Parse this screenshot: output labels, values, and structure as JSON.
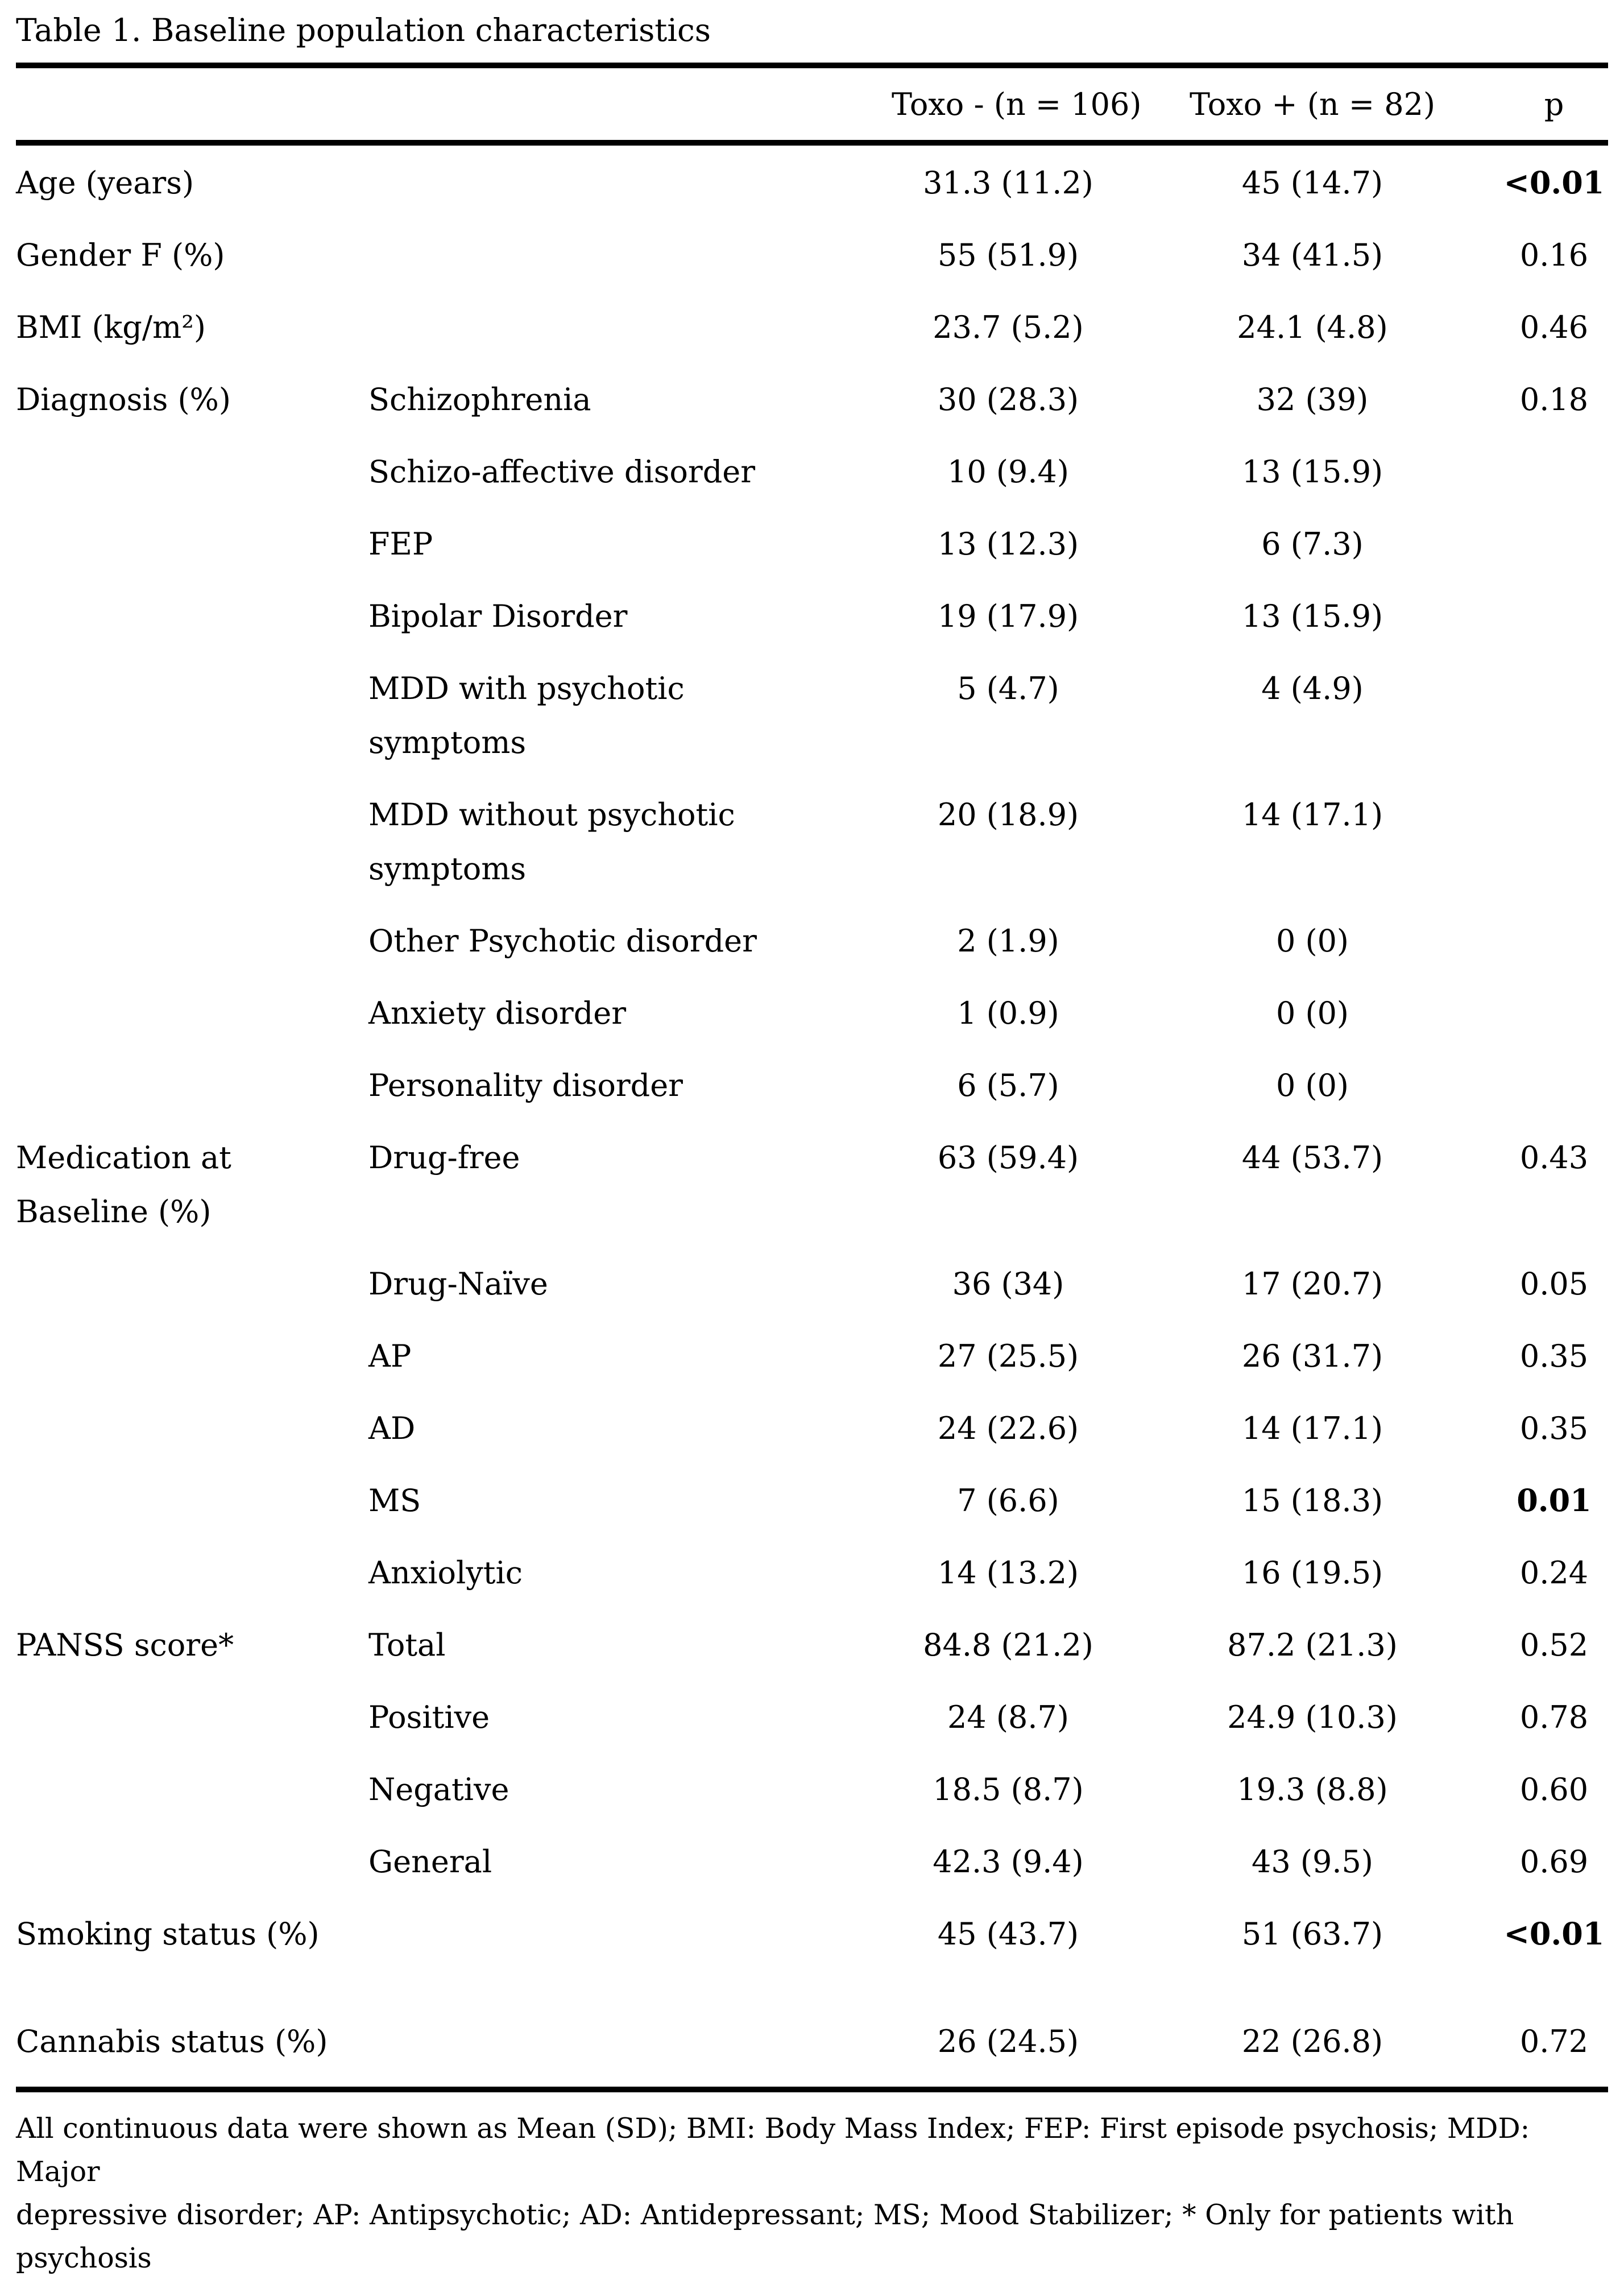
{
  "title": "Table 1. Baseline population characteristics",
  "table": {
    "header": {
      "toxo_neg": "Toxo - (n = 106)",
      "toxo_pos": "Toxo + (n = 82)",
      "p": "p"
    },
    "rows": [
      {
        "group": "Age (years)",
        "item": "",
        "toxo_neg": "31.3 (11.2)",
        "toxo_pos": "45 (14.7)",
        "p": "<0.01",
        "p_bold": true,
        "gap_after": false
      },
      {
        "group": "Gender F (%)",
        "item": "",
        "toxo_neg": "55 (51.9)",
        "toxo_pos": "34 (41.5)",
        "p": "0.16",
        "p_bold": false,
        "gap_after": false
      },
      {
        "group": "BMI (kg/m²)",
        "item": "",
        "toxo_neg": "23.7 (5.2)",
        "toxo_pos": "24.1 (4.8)",
        "p": "0.46",
        "p_bold": false,
        "gap_after": false
      },
      {
        "group": "Diagnosis (%)",
        "item": "Schizophrenia",
        "toxo_neg": "30 (28.3)",
        "toxo_pos": "32 (39)",
        "p": "0.18",
        "p_bold": false,
        "gap_after": false
      },
      {
        "group": "",
        "item": "Schizo-affective disorder",
        "toxo_neg": "10 (9.4)",
        "toxo_pos": "13 (15.9)",
        "p": "",
        "p_bold": false,
        "gap_after": false
      },
      {
        "group": "",
        "item": "FEP",
        "toxo_neg": "13 (12.3)",
        "toxo_pos": "6 (7.3)",
        "p": "",
        "p_bold": false,
        "gap_after": false
      },
      {
        "group": "",
        "item": "Bipolar Disorder",
        "toxo_neg": "19 (17.9)",
        "toxo_pos": "13 (15.9)",
        "p": "",
        "p_bold": false,
        "gap_after": false
      },
      {
        "group": "",
        "item": "MDD with psychotic symptoms",
        "toxo_neg": "5 (4.7)",
        "toxo_pos": "4 (4.9)",
        "p": "",
        "p_bold": false,
        "gap_after": false
      },
      {
        "group": "",
        "item": "MDD without psychotic symptoms",
        "toxo_neg": "20 (18.9)",
        "toxo_pos": "14 (17.1)",
        "p": "",
        "p_bold": false,
        "gap_after": false
      },
      {
        "group": "",
        "item": "Other Psychotic disorder",
        "toxo_neg": "2 (1.9)",
        "toxo_pos": "0 (0)",
        "p": "",
        "p_bold": false,
        "gap_after": false
      },
      {
        "group": "",
        "item": "Anxiety disorder",
        "toxo_neg": "1 (0.9)",
        "toxo_pos": "0 (0)",
        "p": "",
        "p_bold": false,
        "gap_after": false
      },
      {
        "group": "",
        "item": "Personality disorder",
        "toxo_neg": "6 (5.7)",
        "toxo_pos": "0 (0)",
        "p": "",
        "p_bold": false,
        "gap_after": false
      },
      {
        "group": "Medication at Baseline (%)",
        "item": "Drug-free",
        "toxo_neg": "63 (59.4)",
        "toxo_pos": "44 (53.7)",
        "p": "0.43",
        "p_bold": false,
        "gap_after": false
      },
      {
        "group": "",
        "item": "Drug-Naïve",
        "toxo_neg": "36 (34)",
        "toxo_pos": "17 (20.7)",
        "p": "0.05",
        "p_bold": false,
        "gap_after": false
      },
      {
        "group": "",
        "item": "AP",
        "toxo_neg": "27 (25.5)",
        "toxo_pos": "26 (31.7)",
        "p": "0.35",
        "p_bold": false,
        "gap_after": false
      },
      {
        "group": "",
        "item": "AD",
        "toxo_neg": "24 (22.6)",
        "toxo_pos": "14 (17.1)",
        "p": "0.35",
        "p_bold": false,
        "gap_after": false
      },
      {
        "group": "",
        "item": "MS",
        "toxo_neg": "7 (6.6)",
        "toxo_pos": "15 (18.3)",
        "p": "0.01",
        "p_bold": true,
        "gap_after": false
      },
      {
        "group": "",
        "item": "Anxiolytic",
        "toxo_neg": "14 (13.2)",
        "toxo_pos": "16 (19.5)",
        "p": "0.24",
        "p_bold": false,
        "gap_after": false
      },
      {
        "group": "PANSS score*",
        "item": "Total",
        "toxo_neg": "84.8 (21.2)",
        "toxo_pos": "87.2 (21.3)",
        "p": "0.52",
        "p_bold": false,
        "gap_after": false
      },
      {
        "group": "",
        "item": "Positive",
        "toxo_neg": "24 (8.7)",
        "toxo_pos": "24.9 (10.3)",
        "p": "0.78",
        "p_bold": false,
        "gap_after": false
      },
      {
        "group": "",
        "item": "Negative",
        "toxo_neg": "18.5 (8.7)",
        "toxo_pos": "19.3 (8.8)",
        "p": "0.60",
        "p_bold": false,
        "gap_after": false
      },
      {
        "group": "",
        "item": "General",
        "toxo_neg": "42.3 (9.4)",
        "toxo_pos": "43 (9.5)",
        "p": "0.69",
        "p_bold": false,
        "gap_after": false
      },
      {
        "group": "Smoking status (%)",
        "item": "",
        "toxo_neg": "45 (43.7)",
        "toxo_pos": "51 (63.7)",
        "p": "<0.01",
        "p_bold": true,
        "gap_after": true
      },
      {
        "group": "Cannabis status (%)",
        "item": "",
        "toxo_neg": "26 (24.5)",
        "toxo_pos": "22 (26.8)",
        "p": "0.72",
        "p_bold": false,
        "gap_after": false
      }
    ]
  },
  "footnote_lines": [
    "All continuous data were shown as Mean (SD); BMI: Body Mass Index; FEP: First episode psychosis; MDD: Major",
    "depressive disorder; AP: Antipsychotic; AD: Antidepressant; MS; Mood Stabilizer; * Only for patients with",
    "psychosis"
  ]
}
